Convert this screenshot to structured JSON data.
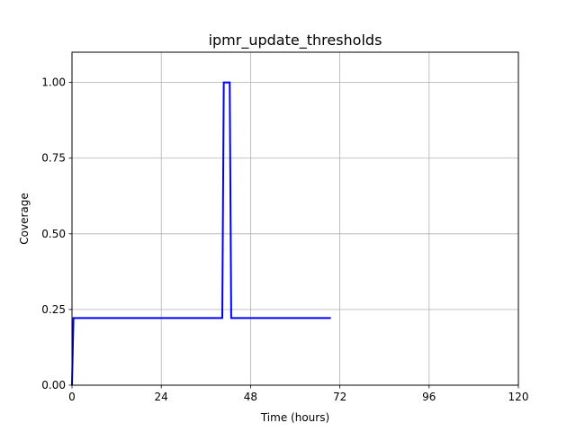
{
  "chart_data": {
    "type": "line",
    "title": "ipmr_update_thresholds",
    "xlabel": "Time (hours)",
    "ylabel": "Coverage",
    "xlim": [
      0,
      120
    ],
    "ylim": [
      0,
      1.1
    ],
    "xticks": [
      0,
      24,
      48,
      72,
      96,
      120
    ],
    "xtick_labels": [
      "0",
      "24",
      "48",
      "72",
      "96",
      "120"
    ],
    "yticks": [
      0,
      0.25,
      0.5,
      0.75,
      1.0
    ],
    "ytick_labels": [
      "0.00",
      "0.25",
      "0.50",
      "0.75",
      "1.00"
    ],
    "grid": true,
    "legend": false,
    "series": [
      {
        "color": "#0000ff",
        "x": [
          0,
          0.4,
          40.4,
          40.8,
          42.4,
          42.8,
          69.6
        ],
        "y": [
          0,
          0.222,
          0.222,
          1.0,
          1.0,
          0.222,
          0.222
        ]
      }
    ]
  }
}
